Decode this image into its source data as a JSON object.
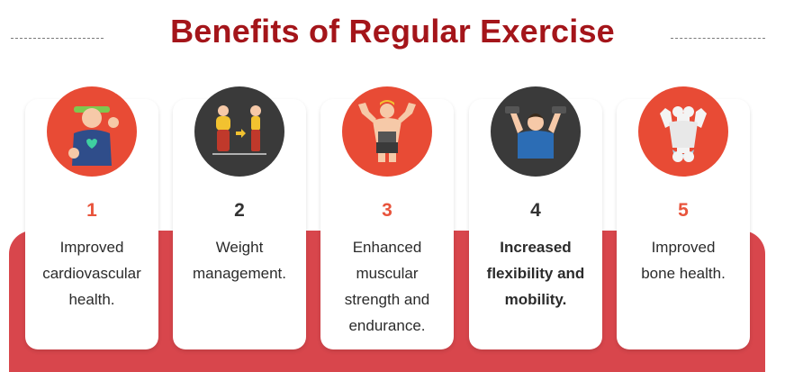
{
  "title": "Benefits of Regular Exercise",
  "colors": {
    "title": "#a4151a",
    "band": "#d8464c",
    "circle_red": "#e84b35",
    "circle_dark": "#3a3a3a",
    "number_red": "#e8543c"
  },
  "benefits": [
    {
      "number": "1",
      "line1": "Improved",
      "line2": "cardiovascular",
      "line3": "health.",
      "line4": "",
      "icon": "heart-health-icon"
    },
    {
      "number": "2",
      "line1": "Weight",
      "line2": "management.",
      "line3": "",
      "line4": "",
      "icon": "weight-loss-icon"
    },
    {
      "number": "3",
      "line1": "Enhanced",
      "line2": "muscular",
      "line3": "strength and",
      "line4": "endurance.",
      "icon": "muscle-strength-icon"
    },
    {
      "number": "4",
      "line1": "Increased",
      "line2": "flexibility and",
      "line3": "mobility.",
      "line4": "",
      "icon": "flexibility-icon"
    },
    {
      "number": "5",
      "line1": "Improved",
      "line2": "bone health.",
      "line3": "",
      "line4": "",
      "icon": "bone-health-icon"
    }
  ]
}
